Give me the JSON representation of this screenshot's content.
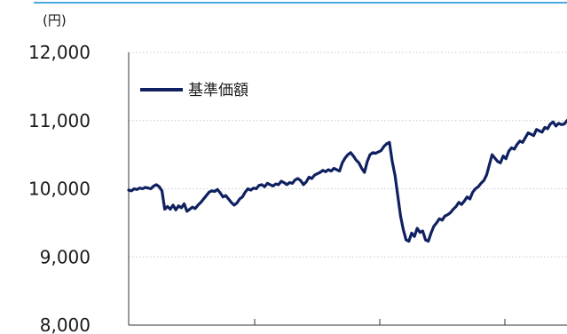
{
  "colors": {
    "series": "#0f2160",
    "top_rule": "#4aa8e0",
    "grid": "#c8c8c8",
    "axis": "#333333"
  },
  "chart_data": {
    "type": "line",
    "unit_label": "(円)",
    "y_ticks": [
      "12,000",
      "11,000",
      "10,000",
      "9,000",
      "8,000"
    ],
    "ylim": [
      8000,
      12000
    ],
    "grid": "horizontal-dotted",
    "legend_position": "top-left",
    "series": [
      {
        "name": "基準価額",
        "values": [
          9980,
          9970,
          10000,
          9990,
          10010,
          10000,
          10020,
          10010,
          10000,
          10040,
          10060,
          10030,
          9970,
          9700,
          9740,
          9700,
          9760,
          9690,
          9750,
          9720,
          9780,
          9670,
          9700,
          9730,
          9710,
          9760,
          9800,
          9850,
          9900,
          9950,
          9970,
          9960,
          9990,
          9940,
          9880,
          9900,
          9850,
          9800,
          9760,
          9790,
          9850,
          9880,
          9950,
          10000,
          9980,
          10010,
          10000,
          10050,
          10060,
          10030,
          10080,
          10060,
          10040,
          10070,
          10060,
          10110,
          10090,
          10060,
          10090,
          10080,
          10130,
          10150,
          10120,
          10060,
          10100,
          10170,
          10150,
          10200,
          10220,
          10240,
          10270,
          10250,
          10280,
          10260,
          10300,
          10280,
          10260,
          10380,
          10450,
          10500,
          10530,
          10480,
          10420,
          10380,
          10300,
          10240,
          10400,
          10500,
          10530,
          10520,
          10540,
          10560,
          10620,
          10660,
          10680,
          10400,
          10200,
          9900,
          9600,
          9400,
          9250,
          9230,
          9350,
          9300,
          9420,
          9360,
          9380,
          9250,
          9230,
          9350,
          9450,
          9500,
          9560,
          9540,
          9600,
          9620,
          9650,
          9700,
          9740,
          9800,
          9770,
          9820,
          9880,
          9850,
          9950,
          10000,
          10030,
          10080,
          10120,
          10200,
          10350,
          10500,
          10450,
          10400,
          10380,
          10480,
          10440,
          10550,
          10600,
          10580,
          10650,
          10700,
          10680,
          10750,
          10820,
          10800,
          10780,
          10870,
          10850,
          10830,
          10900,
          10880,
          10950,
          10980,
          10920,
          10960,
          10940,
          10950,
          11000
        ]
      }
    ]
  }
}
